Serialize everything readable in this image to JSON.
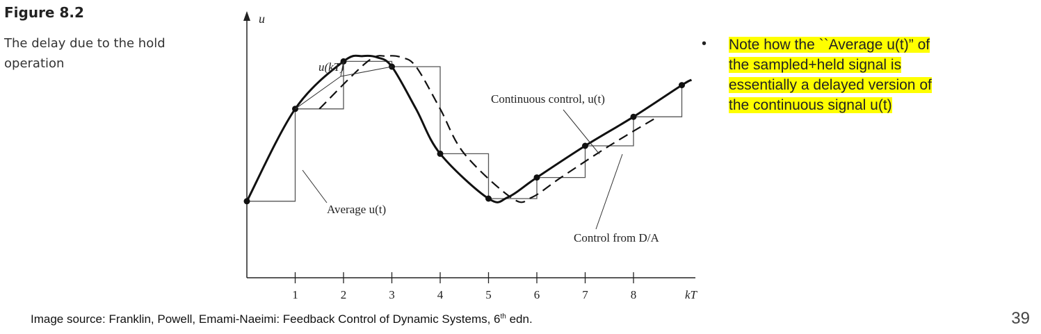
{
  "figure": {
    "title": "Figure 8.2",
    "caption": "The delay due to the hold operation"
  },
  "chart_data": {
    "type": "line",
    "ylabel": "u",
    "xlabel": "kT",
    "xticks": [
      "1",
      "2",
      "3",
      "4",
      "5",
      "6",
      "7",
      "8"
    ],
    "xlim": [
      -0.1,
      9.2
    ],
    "ylim": [
      0,
      1
    ],
    "samples": {
      "x": [
        0,
        1,
        2,
        3,
        4,
        5,
        6,
        7,
        8,
        9
      ],
      "u": [
        0.29,
        0.64,
        0.82,
        0.8,
        0.47,
        0.3,
        0.38,
        0.5,
        0.61,
        0.73
      ]
    },
    "continuous_extra_points": [
      [
        2.4,
        0.84
      ],
      [
        2.7,
        0.835
      ],
      [
        3.5,
        0.64
      ],
      [
        5.4,
        0.305
      ],
      [
        9.2,
        0.75
      ]
    ],
    "series": [
      {
        "name": "Continuous control, u(t)",
        "style": "solid-thick"
      },
      {
        "name": "Control from D/A",
        "style": "staircase-thin"
      },
      {
        "name": "Average u(t)",
        "style": "dashed"
      }
    ],
    "annotations": [
      "u(kT)",
      "Continuous control, u(t)",
      "Average u(t)",
      "Control from D/A"
    ]
  },
  "note": {
    "bullet": "•",
    "lines": [
      "Note how the ``Average u(t)” of",
      "the sampled+held signal is",
      "essentially a delayed version of",
      "the continuous signal u(t)"
    ]
  },
  "footer": {
    "source_prefix": "Image source: Franklin, Powell, Emami-Naeimi: Feedback Control of Dynamic Systems, 6",
    "source_sup": "th",
    "source_suffix": " edn.",
    "page_number": "39"
  },
  "colors": {
    "curve": "#111111",
    "stair": "#555555",
    "highlight": "#ffff00"
  }
}
